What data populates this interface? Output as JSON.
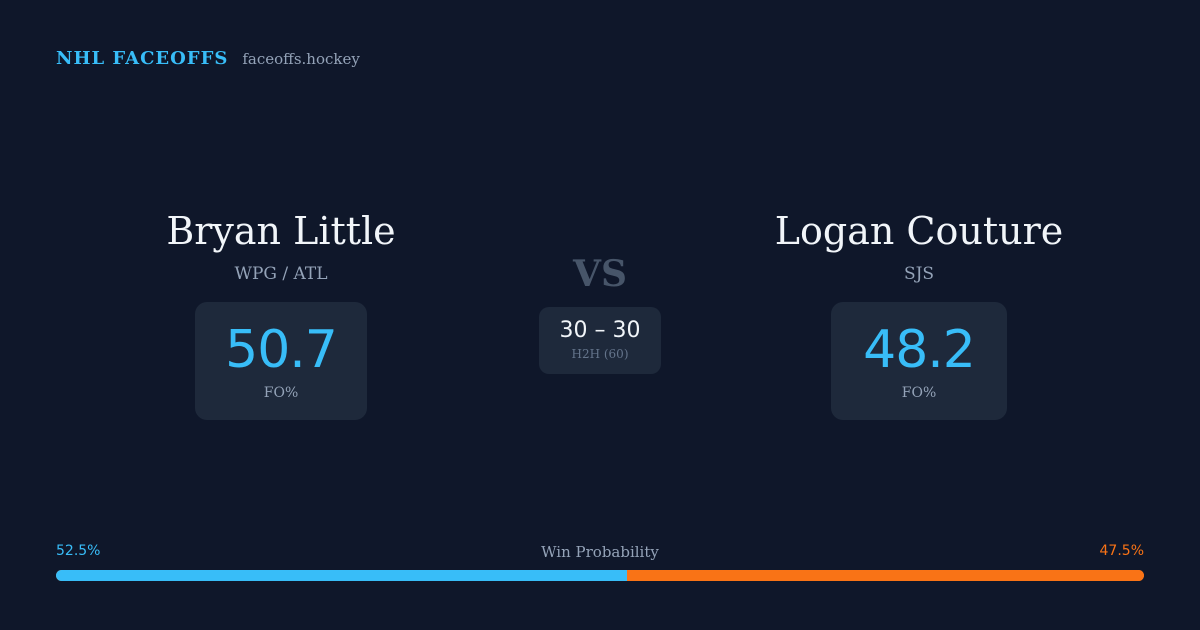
{
  "brand": {
    "title": "NHL FACEOFFS",
    "url": "faceoffs.hockey"
  },
  "colors": {
    "background": "#0f172a",
    "card": "#1e293b",
    "accent_blue": "#38bdf8",
    "accent_orange": "#f97316",
    "muted": "#94a3b8"
  },
  "player_left": {
    "name": "Bryan Little",
    "team": "WPG / ATL",
    "fo_pct": "50.7",
    "fo_label": "FO%"
  },
  "player_right": {
    "name": "Logan Couture",
    "team": "SJS",
    "fo_pct": "48.2",
    "fo_label": "FO%"
  },
  "versus": {
    "label": "VS",
    "h2h_score": "30 – 30",
    "h2h_label": "H2H (60)"
  },
  "win_probability": {
    "title": "Win Probability",
    "left_label": "52.5%",
    "right_label": "47.5%",
    "left_value": 52.5,
    "right_value": 47.5
  }
}
